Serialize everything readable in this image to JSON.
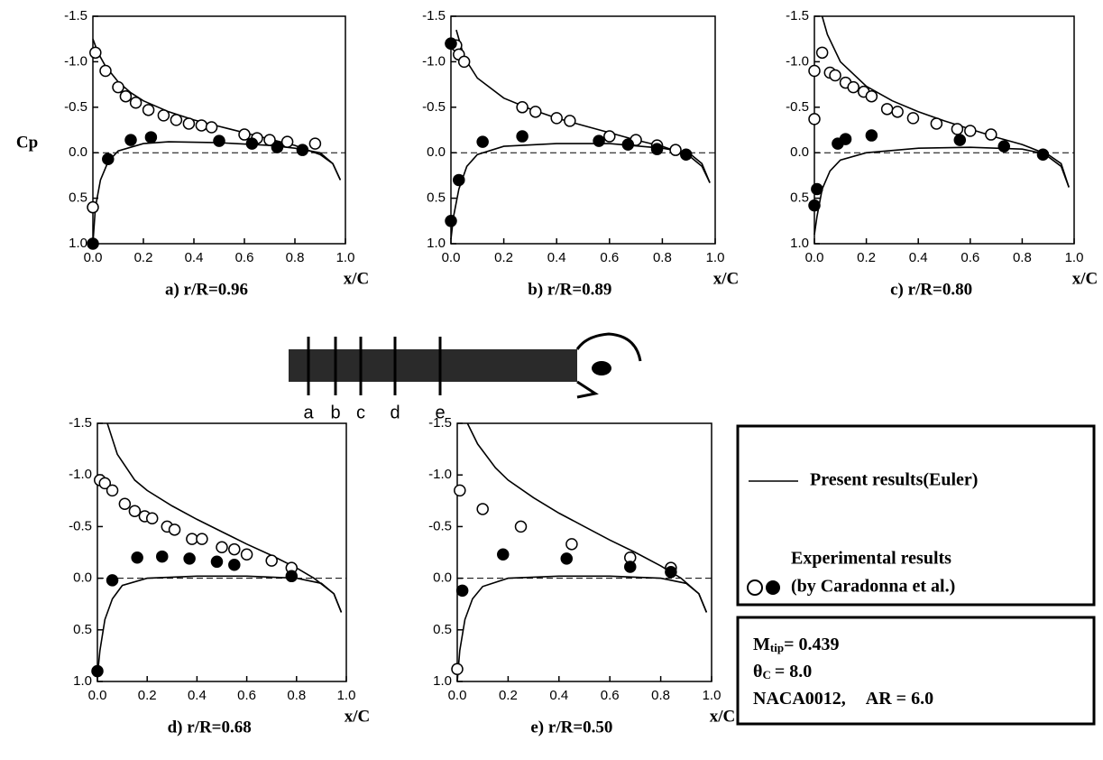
{
  "chart_data": [
    {
      "type": "line",
      "title": "a) r/R=0.96",
      "ylabel": "Cp",
      "xlabel": "x/C",
      "xlim": [
        0,
        1
      ],
      "ylim": [
        1,
        -1.5
      ],
      "xticks": [
        {
          "value": 0,
          "label": "0.0"
        },
        0.2,
        0.4,
        0.6,
        0.8,
        {
          "value": 1,
          "label": "1.0"
        }
      ],
      "yticks": [
        {
          "value": -1.5,
          "label": "-1.5"
        },
        {
          "value": -1,
          "label": "-1.0"
        },
        -0.5,
        {
          "value": 0,
          "label": "0.0"
        },
        0.5,
        {
          "value": 1,
          "label": "1.0"
        }
      ],
      "zero_line": true,
      "series": [
        {
          "kind": "line",
          "color": "#000",
          "x": [
            0,
            0.02,
            0.05,
            0.1,
            0.15,
            0.2,
            0.3,
            0.4,
            0.5,
            0.6,
            0.7,
            0.8,
            0.85,
            0.9,
            0.95,
            0.98
          ],
          "values": [
            -1.25,
            -1.1,
            -0.95,
            -0.78,
            -0.66,
            -0.57,
            -0.45,
            -0.36,
            -0.29,
            -0.22,
            -0.15,
            -0.08,
            -0.03,
            0.02,
            0.12,
            0.3
          ]
        },
        {
          "kind": "line",
          "color": "#000",
          "x": [
            0,
            0.01,
            0.03,
            0.06,
            0.1,
            0.2,
            0.3,
            0.5,
            0.7,
            0.8,
            0.9,
            0.95,
            0.98
          ],
          "values": [
            1,
            0.6,
            0.3,
            0.1,
            -0.02,
            -0.1,
            -0.12,
            -0.11,
            -0.08,
            -0.05,
            0,
            0.12,
            0.3
          ]
        },
        {
          "kind": "marker",
          "filled": false,
          "color": "#000",
          "x": [
            0,
            0.01,
            0.05,
            0.1,
            0.13,
            0.17,
            0.22,
            0.28,
            0.33,
            0.38,
            0.43,
            0.47,
            0.6,
            0.65,
            0.7,
            0.77,
            0.88
          ],
          "values": [
            0.6,
            -1.1,
            -0.9,
            -0.72,
            -0.62,
            -0.55,
            -0.47,
            -0.41,
            -0.36,
            -0.32,
            -0.3,
            -0.28,
            -0.2,
            -0.16,
            -0.14,
            -0.12,
            -0.1
          ]
        },
        {
          "kind": "marker",
          "filled": true,
          "color": "#000",
          "x": [
            0,
            0.06,
            0.15,
            0.23,
            0.5,
            0.63,
            0.73,
            0.83
          ],
          "values": [
            1,
            0.07,
            -0.14,
            -0.17,
            -0.13,
            -0.1,
            -0.06,
            -0.03
          ]
        }
      ]
    },
    {
      "type": "line",
      "title": "b) r/R=0.89",
      "xlabel": "x/C",
      "xlim": [
        0,
        1
      ],
      "ylim": [
        1,
        -1.5
      ],
      "xticks": [
        {
          "value": 0,
          "label": "0.0"
        },
        0.2,
        0.4,
        0.6,
        0.8,
        {
          "value": 1,
          "label": "1.0"
        }
      ],
      "yticks": [
        {
          "value": -1.5,
          "label": "-1.5"
        },
        {
          "value": -1,
          "label": "-1.0"
        },
        -0.5,
        {
          "value": 0,
          "label": "0.0"
        },
        0.5,
        {
          "value": 1,
          "label": "1.0"
        }
      ],
      "zero_line": true,
      "series": [
        {
          "kind": "line",
          "color": "#000",
          "x": [
            0.02,
            0.05,
            0.1,
            0.2,
            0.3,
            0.4,
            0.5,
            0.6,
            0.7,
            0.8,
            0.85,
            0.9,
            0.95,
            0.98
          ],
          "values": [
            -1.35,
            -1.05,
            -0.82,
            -0.6,
            -0.48,
            -0.38,
            -0.3,
            -0.22,
            -0.14,
            -0.07,
            -0.02,
            0.03,
            0.15,
            0.33
          ]
        },
        {
          "kind": "line",
          "color": "#000",
          "x": [
            0,
            0.01,
            0.03,
            0.06,
            0.1,
            0.2,
            0.4,
            0.6,
            0.8,
            0.9,
            0.95,
            0.98
          ],
          "values": [
            0.95,
            0.7,
            0.4,
            0.15,
            0.02,
            -0.07,
            -0.1,
            -0.1,
            -0.05,
            0,
            0.12,
            0.33
          ]
        },
        {
          "kind": "marker",
          "filled": false,
          "color": "#000",
          "x": [
            0,
            0.02,
            0.03,
            0.05,
            0.27,
            0.32,
            0.4,
            0.45,
            0.6,
            0.7,
            0.78,
            0.85
          ],
          "values": [
            -1.2,
            -1.18,
            -1.08,
            -1,
            -0.5,
            -0.45,
            -0.38,
            -0.35,
            -0.18,
            -0.14,
            -0.08,
            -0.03
          ]
        },
        {
          "kind": "marker",
          "filled": true,
          "color": "#000",
          "x": [
            0,
            0,
            0.03,
            0.12,
            0.27,
            0.56,
            0.67,
            0.78,
            0.89
          ],
          "values": [
            -1.2,
            0.75,
            0.3,
            -0.12,
            -0.18,
            -0.13,
            -0.09,
            -0.04,
            0.02
          ]
        }
      ]
    },
    {
      "type": "line",
      "title": "c) r/R=0.80",
      "xlabel": "x/C",
      "xlim": [
        0,
        1
      ],
      "ylim": [
        1,
        -1.5
      ],
      "xticks": [
        {
          "value": 0,
          "label": "0.0"
        },
        0.2,
        0.4,
        0.6,
        0.8,
        {
          "value": 1,
          "label": "1.0"
        }
      ],
      "yticks": [
        {
          "value": -1.5,
          "label": "-1.5"
        },
        {
          "value": -1,
          "label": "-1.0"
        },
        -0.5,
        {
          "value": 0,
          "label": "0.0"
        },
        0.5,
        {
          "value": 1,
          "label": "1.0"
        }
      ],
      "zero_line": true,
      "series": [
        {
          "kind": "line",
          "color": "#000",
          "x": [
            0.03,
            0.05,
            0.1,
            0.2,
            0.3,
            0.4,
            0.5,
            0.6,
            0.7,
            0.8,
            0.88,
            0.95,
            0.98
          ],
          "values": [
            -1.5,
            -1.3,
            -1,
            -0.73,
            -0.57,
            -0.45,
            -0.35,
            -0.26,
            -0.17,
            -0.09,
            0,
            0.15,
            0.38
          ]
        },
        {
          "kind": "line",
          "color": "#000",
          "x": [
            0,
            0.01,
            0.03,
            0.06,
            0.1,
            0.2,
            0.4,
            0.6,
            0.8,
            0.9,
            0.95,
            0.98
          ],
          "values": [
            0.9,
            0.7,
            0.4,
            0.2,
            0.08,
            0,
            -0.05,
            -0.06,
            -0.04,
            0.02,
            0.12,
            0.38
          ]
        },
        {
          "kind": "marker",
          "filled": false,
          "color": "#000",
          "x": [
            0,
            0,
            0.03,
            0.06,
            0.08,
            0.12,
            0.15,
            0.19,
            0.22,
            0.28,
            0.32,
            0.38,
            0.47,
            0.55,
            0.6,
            0.68
          ],
          "values": [
            -0.37,
            -0.9,
            -1.1,
            -0.88,
            -0.85,
            -0.77,
            -0.72,
            -0.67,
            -0.62,
            -0.48,
            -0.45,
            -0.38,
            -0.32,
            -0.26,
            -0.24,
            -0.2
          ]
        },
        {
          "kind": "marker",
          "filled": true,
          "color": "#000",
          "x": [
            0,
            0.01,
            0.09,
            0.12,
            0.22,
            0.56,
            0.73,
            0.88
          ],
          "values": [
            0.58,
            0.4,
            -0.1,
            -0.15,
            -0.19,
            -0.14,
            -0.07,
            0.02
          ]
        }
      ]
    },
    {
      "type": "line",
      "title": "d) r/R=0.68",
      "xlabel": "x/C",
      "xlim": [
        0,
        1
      ],
      "ylim": [
        1,
        -1.5
      ],
      "xticks": [
        {
          "value": 0,
          "label": "0.0"
        },
        0.2,
        0.4,
        0.6,
        0.8,
        {
          "value": 1,
          "label": "1.0"
        }
      ],
      "yticks": [
        {
          "value": -1.5,
          "label": "-1.5"
        },
        {
          "value": -1,
          "label": "-1.0"
        },
        -0.5,
        {
          "value": 0,
          "label": "0.0"
        },
        0.5,
        {
          "value": 1,
          "label": "1.0"
        }
      ],
      "zero_line": true,
      "series": [
        {
          "kind": "line",
          "color": "#000",
          "x": [
            0.04,
            0.08,
            0.15,
            0.2,
            0.3,
            0.4,
            0.5,
            0.6,
            0.7,
            0.8,
            0.87,
            0.95,
            0.98
          ],
          "values": [
            -1.5,
            -1.2,
            -0.95,
            -0.85,
            -0.7,
            -0.57,
            -0.45,
            -0.33,
            -0.22,
            -0.1,
            0,
            0.15,
            0.33
          ]
        },
        {
          "kind": "line",
          "color": "#000",
          "x": [
            0,
            0.01,
            0.03,
            0.06,
            0.1,
            0.2,
            0.4,
            0.6,
            0.8,
            0.9,
            0.95,
            0.98
          ],
          "values": [
            0.95,
            0.7,
            0.4,
            0.2,
            0.07,
            0,
            -0.02,
            -0.02,
            0,
            0.05,
            0.15,
            0.33
          ]
        },
        {
          "kind": "marker",
          "filled": false,
          "color": "#000",
          "x": [
            0.01,
            0.03,
            0.06,
            0.11,
            0.15,
            0.19,
            0.22,
            0.28,
            0.31,
            0.38,
            0.42,
            0.5,
            0.55,
            0.6,
            0.7,
            0.78
          ],
          "values": [
            -0.95,
            -0.92,
            -0.85,
            -0.72,
            -0.65,
            -0.6,
            -0.58,
            -0.5,
            -0.47,
            -0.38,
            -0.38,
            -0.3,
            -0.28,
            -0.23,
            -0.17,
            -0.1
          ]
        },
        {
          "kind": "marker",
          "filled": true,
          "color": "#000",
          "x": [
            0,
            0.06,
            0.16,
            0.26,
            0.37,
            0.48,
            0.55,
            0.78
          ],
          "values": [
            0.9,
            0.02,
            -0.2,
            -0.21,
            -0.19,
            -0.16,
            -0.13,
            -0.02
          ]
        }
      ]
    },
    {
      "type": "line",
      "title": "e) r/R=0.50",
      "xlabel": "x/C",
      "xlim": [
        0,
        1
      ],
      "ylim": [
        1,
        -1.5
      ],
      "xticks": [
        {
          "value": 0,
          "label": "0.0"
        },
        0.2,
        0.4,
        0.6,
        0.8,
        {
          "value": 1,
          "label": "1.0"
        }
      ],
      "yticks": [
        {
          "value": -1.5,
          "label": "-1.5"
        },
        {
          "value": -1,
          "label": "-1.0"
        },
        -0.5,
        {
          "value": 0,
          "label": "0.0"
        },
        0.5,
        {
          "value": 1,
          "label": "1.0"
        }
      ],
      "zero_line": true,
      "series": [
        {
          "kind": "line",
          "color": "#000",
          "x": [
            0.04,
            0.08,
            0.15,
            0.2,
            0.3,
            0.4,
            0.5,
            0.6,
            0.7,
            0.8,
            0.88,
            0.95,
            0.98
          ],
          "values": [
            -1.5,
            -1.3,
            -1.07,
            -0.95,
            -0.78,
            -0.63,
            -0.5,
            -0.37,
            -0.25,
            -0.12,
            0,
            0.15,
            0.33
          ]
        },
        {
          "kind": "line",
          "color": "#000",
          "x": [
            0,
            0.01,
            0.03,
            0.06,
            0.1,
            0.2,
            0.4,
            0.6,
            0.8,
            0.9,
            0.95,
            0.98
          ],
          "values": [
            1,
            0.7,
            0.4,
            0.2,
            0.08,
            0,
            -0.02,
            -0.02,
            0,
            0.05,
            0.15,
            0.33
          ]
        },
        {
          "kind": "marker",
          "filled": false,
          "color": "#000",
          "x": [
            0,
            0.01,
            0.1,
            0.25,
            0.45,
            0.68,
            0.84
          ],
          "values": [
            0.88,
            -0.85,
            -0.67,
            -0.5,
            -0.33,
            -0.2,
            -0.1
          ]
        },
        {
          "kind": "marker",
          "filled": true,
          "color": "#000",
          "x": [
            0.02,
            0.18,
            0.43,
            0.68,
            0.84
          ],
          "values": [
            0.12,
            -0.23,
            -0.19,
            -0.11,
            -0.06
          ]
        }
      ]
    }
  ],
  "legend": {
    "line_label": "Present results(Euler)",
    "marker_lines": [
      "Experimental results",
      "(by Caradonna et al.)"
    ]
  },
  "conditions": {
    "mach": {
      "symbol": "M",
      "subscript": "tip",
      "text": "= 0.439"
    },
    "pitch": {
      "symbol": "θ",
      "subscript": "C",
      "text": "= 8.0"
    },
    "airfoil": {
      "name": "NACA0012,",
      "aspect": "AR = 6.0"
    }
  },
  "diagram": {
    "stations": [
      "a",
      "b",
      "c",
      "d",
      "e"
    ]
  }
}
